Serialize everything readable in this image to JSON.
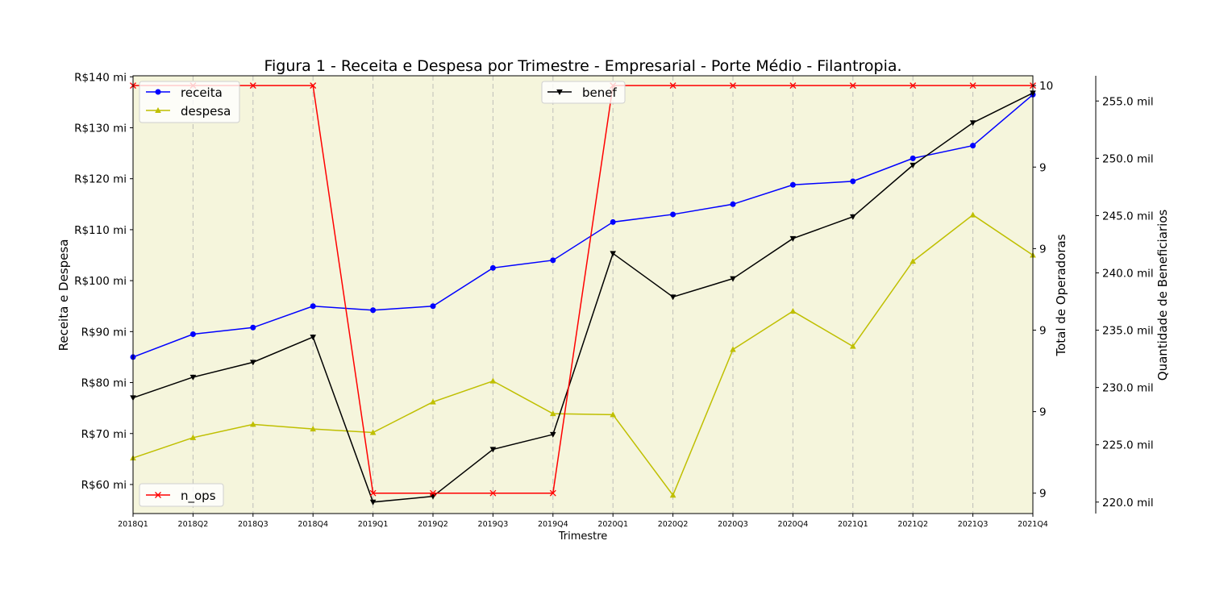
{
  "chart_data": {
    "type": "line",
    "title": "Figura 1 - Receita e Despesa por Trimestre - Empresarial - Porte Médio - Filantropia.",
    "xlabel": "Trimestre",
    "categories": [
      "2018Q1",
      "2018Q2",
      "2018Q3",
      "2018Q4",
      "2019Q1",
      "2019Q2",
      "2019Q3",
      "2019Q4",
      "2020Q1",
      "2020Q2",
      "2020Q3",
      "2020Q4",
      "2021Q1",
      "2021Q2",
      "2021Q3",
      "2021Q4"
    ],
    "axes": {
      "left": {
        "label": "Receita e Despesa",
        "ticks": [
          "R$60 mi",
          "R$70 mi",
          "R$80 mi",
          "R$90 mi",
          "R$100 mi",
          "R$110 mi",
          "R$120 mi",
          "R$130 mi",
          "R$140 mi"
        ],
        "tick_values": [
          60,
          70,
          80,
          90,
          100,
          110,
          120,
          130,
          140
        ],
        "ylim": [
          54.3,
          140.2
        ]
      },
      "right1": {
        "label": "Total de Operadoras",
        "ticks": [
          "9",
          "9",
          "9",
          "9",
          "9",
          "10"
        ],
        "tick_values": [
          9.0,
          9.2,
          9.4,
          9.6,
          9.8,
          10.0
        ],
        "ylim": [
          8.95,
          10.024
        ]
      },
      "right2": {
        "label": "Quantidade de Beneficiarios",
        "ticks": [
          "220.0 mil",
          "225.0 mil",
          "230.0 mil",
          "235.0 mil",
          "240.0 mil",
          "245.0 mil",
          "250.0 mil",
          "255.0 mil"
        ],
        "tick_values": [
          220,
          225,
          230,
          235,
          240,
          245,
          250,
          255
        ],
        "ylim": [
          219.0,
          257.2
        ]
      }
    },
    "series": [
      {
        "name": "receita",
        "axis": "left",
        "color": "#0000ff",
        "marker": "circle",
        "values": [
          85.0,
          89.5,
          90.8,
          95.0,
          94.2,
          95.0,
          102.5,
          104.0,
          111.5,
          113.0,
          115.0,
          118.8,
          119.5,
          124.0,
          126.5,
          136.5
        ]
      },
      {
        "name": "despesa",
        "axis": "left",
        "color": "#bfbf00",
        "marker": "triangle-up",
        "values": [
          65.2,
          69.2,
          71.8,
          70.9,
          70.2,
          76.2,
          80.3,
          73.9,
          73.7,
          57.9,
          86.5,
          94.0,
          87.1,
          103.8,
          112.9,
          105.0
        ]
      },
      {
        "name": "n_ops",
        "axis": "right1",
        "color": "#ff0000",
        "marker": "x",
        "values": [
          10,
          10,
          10,
          10,
          9,
          9,
          9,
          9,
          10,
          10,
          10,
          10,
          10,
          10,
          10,
          10
        ]
      },
      {
        "name": "benef",
        "axis": "right2",
        "color": "#000000",
        "marker": "triangle-down",
        "values": [
          229.1,
          230.9,
          232.2,
          234.4,
          220.0,
          220.5,
          224.6,
          225.9,
          241.7,
          237.9,
          239.5,
          243.0,
          244.9,
          249.4,
          253.1,
          255.7
        ]
      }
    ],
    "legends": [
      {
        "position": "upper-left",
        "entries": [
          "receita",
          "despesa"
        ]
      },
      {
        "position": "upper-center",
        "entries": [
          "benef"
        ]
      },
      {
        "position": "lower-left",
        "entries": [
          "n_ops"
        ]
      }
    ],
    "plot_background": "#f5f5dc",
    "vertical_grid": true
  }
}
